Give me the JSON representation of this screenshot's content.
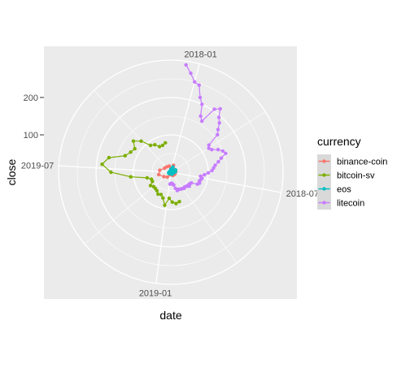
{
  "chart_data": {
    "type": "scatter",
    "coord": "polar",
    "xlabel": "date",
    "ylabel": "close",
    "panel_background": "#ebebeb",
    "grid": true,
    "angular_ticks": [
      "2018-01",
      "2018-07",
      "2019-01",
      "2019-07"
    ],
    "x_range": [
      "2017-12-01",
      "2019-12-31"
    ],
    "y_range": [
      0,
      300
    ],
    "radial_ticks": [
      100,
      200
    ],
    "legend": {
      "title": "currency",
      "position": "right",
      "entries": [
        {
          "name": "binance-coin",
          "color": "#F8766D"
        },
        {
          "name": "bitcoin-sv",
          "color": "#7CAE00"
        },
        {
          "name": "eos",
          "color": "#00BFC4"
        },
        {
          "name": "litecoin",
          "color": "#C77CFF"
        }
      ]
    },
    "series": [
      {
        "name": "litecoin",
        "color": "#C77CFF",
        "x": [
          "2017-12-18",
          "2017-12-25",
          "2018-01-01",
          "2018-01-08",
          "2018-01-15",
          "2018-01-22",
          "2018-01-29",
          "2018-02-05",
          "2018-02-12",
          "2018-02-19",
          "2018-02-26",
          "2018-03-05",
          "2018-03-12",
          "2018-03-19",
          "2018-03-26",
          "2018-04-02",
          "2018-04-09",
          "2018-04-16",
          "2018-04-23",
          "2018-04-30",
          "2018-05-07",
          "2018-05-14",
          "2018-05-21",
          "2018-05-28",
          "2018-06-04",
          "2018-06-11",
          "2018-06-18",
          "2018-06-25",
          "2018-07-02",
          "2018-07-09",
          "2018-07-16",
          "2018-07-23",
          "2018-07-30",
          "2018-08-06",
          "2018-08-13",
          "2018-08-20",
          "2018-08-27",
          "2018-09-03",
          "2018-09-10",
          "2018-09-17",
          "2018-09-24",
          "2018-10-01",
          "2018-10-08",
          "2018-10-15",
          "2018-10-22",
          "2018-10-29",
          "2018-11-05",
          "2018-11-12",
          "2018-11-19",
          "2018-11-26",
          "2018-12-03",
          "2018-12-10",
          "2018-12-17",
          "2018-12-24"
        ],
        "y": [
          290,
          270,
          250,
          245,
          215,
          200,
          170,
          160,
          205,
          215,
          195,
          185,
          170,
          160,
          125,
          120,
          125,
          140,
          150,
          155,
          140,
          130,
          120,
          115,
          110,
          100,
          90,
          80,
          85,
          82,
          80,
          82,
          78,
          62,
          60,
          58,
          62,
          57,
          55,
          54,
          56,
          54,
          53,
          52,
          51,
          50,
          52,
          45,
          35,
          33,
          30,
          30,
          30,
          32
        ]
      },
      {
        "name": "bitcoin-sv",
        "color": "#7CAE00",
        "x": [
          "2018-11-12",
          "2018-11-26",
          "2018-12-10",
          "2018-12-24",
          "2019-01-07",
          "2019-01-21",
          "2019-02-04",
          "2019-02-18",
          "2019-03-04",
          "2019-03-18",
          "2019-04-01",
          "2019-04-15",
          "2019-04-29",
          "2019-05-13",
          "2019-05-27",
          "2019-06-10",
          "2019-06-24",
          "2019-07-08",
          "2019-07-22",
          "2019-08-05",
          "2019-08-19",
          "2019-09-02",
          "2019-09-16",
          "2019-09-30",
          "2019-10-14",
          "2019-10-28",
          "2019-11-11",
          "2019-11-25",
          "2019-12-09"
        ],
        "y": [
          82,
          85,
          80,
          70,
          90,
          72,
          65,
          68,
          62,
          60,
          60,
          65,
          55,
          55,
          65,
          108,
          160,
          185,
          170,
          130,
          120,
          115,
          130,
          115,
          90,
          85,
          75,
          75,
          80
        ]
      },
      {
        "name": "binance-coin",
        "color": "#F8766D",
        "x": [
          "2017-12-04",
          "2018-01-15",
          "2018-03-01",
          "2018-04-15",
          "2018-06-01",
          "2018-07-15",
          "2018-09-01",
          "2018-10-15",
          "2018-12-01",
          "2019-01-15",
          "2019-03-01",
          "2019-04-15",
          "2019-06-01",
          "2019-07-15",
          "2019-09-01",
          "2019-10-15",
          "2019-11-30"
        ],
        "y": [
          10,
          20,
          12,
          14,
          13,
          12,
          11,
          10,
          6,
          7,
          16,
          22,
          33,
          30,
          20,
          18,
          17
        ]
      },
      {
        "name": "eos",
        "color": "#00BFC4",
        "x": [
          "2017-12-04",
          "2018-01-15",
          "2018-03-01",
          "2018-04-15",
          "2018-06-01",
          "2018-07-15",
          "2018-09-01",
          "2018-10-15",
          "2018-12-01",
          "2019-01-15",
          "2019-03-01",
          "2019-04-15",
          "2019-06-01",
          "2019-07-15",
          "2019-09-01",
          "2019-10-15",
          "2019-11-30"
        ],
        "y": [
          8,
          15,
          8,
          14,
          12,
          7,
          6,
          6,
          4,
          3,
          4,
          6,
          6,
          4,
          4,
          3,
          3
        ]
      }
    ]
  }
}
